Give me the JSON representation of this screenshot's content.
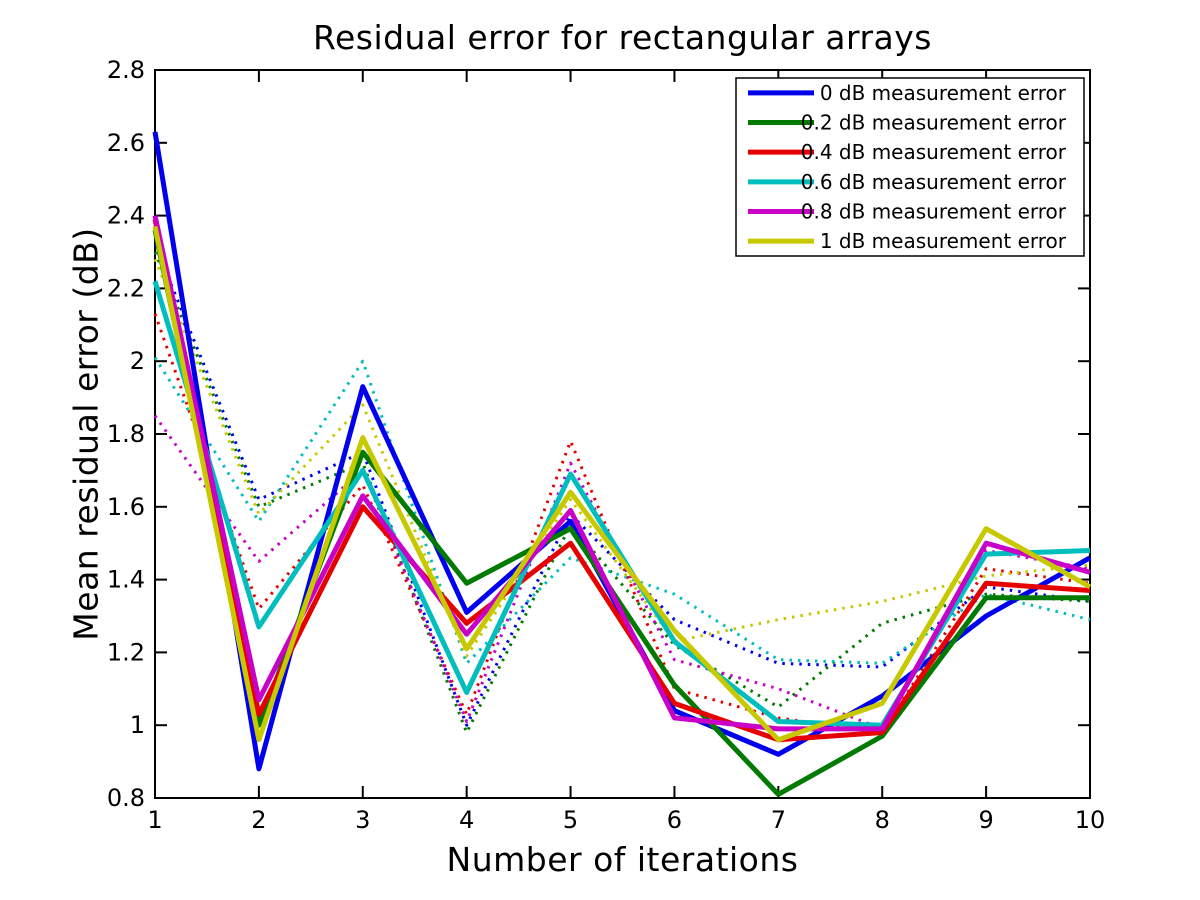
{
  "figure": {
    "background": "#ffffff",
    "title": "Residual error for rectangular arrays",
    "xlabel": "Number of iterations",
    "ylabel": "Mean residual error (dB)"
  },
  "chart_data": {
    "type": "line",
    "title": "Residual error for rectangular arrays",
    "xlabel": "Number of iterations",
    "ylabel": "Mean residual error (dB)",
    "xlim": [
      1,
      10
    ],
    "ylim": [
      0.8,
      2.8
    ],
    "grid": false,
    "legend_position": "top-right",
    "x": [
      1,
      2,
      3,
      4,
      5,
      6,
      7,
      8,
      9,
      10
    ],
    "xtick_labels": [
      "1",
      "2",
      "3",
      "4",
      "5",
      "6",
      "7",
      "8",
      "9",
      "10"
    ],
    "ytick_values": [
      0.8,
      1.0,
      1.2,
      1.4,
      1.6,
      1.8,
      2.0,
      2.2,
      2.4,
      2.6,
      2.8
    ],
    "ytick_labels": [
      "0.8",
      "1",
      "1.2",
      "1.4",
      "1.6",
      "1.8",
      "2",
      "2.2",
      "2.4",
      "2.6",
      "2.8"
    ],
    "series": [
      {
        "id": "blue-dotted",
        "name": "0 dB dotted",
        "color": "#0000EE",
        "style": "dotted",
        "in_legend": false,
        "values": [
          2.32,
          1.62,
          1.75,
          1.0,
          1.58,
          1.29,
          1.17,
          1.16,
          1.38,
          1.34
        ]
      },
      {
        "id": "green-dotted",
        "name": "0.2 dB dotted",
        "color": "#007A00",
        "style": "dotted",
        "in_legend": false,
        "values": [
          2.3,
          1.6,
          1.72,
          0.98,
          1.55,
          1.22,
          1.05,
          1.28,
          1.36,
          1.34
        ]
      },
      {
        "id": "red-dotted",
        "name": "0.4 dB dotted",
        "color": "#E60000",
        "style": "dotted",
        "in_legend": false,
        "values": [
          2.13,
          1.32,
          1.66,
          1.03,
          1.78,
          1.1,
          1.02,
          0.98,
          1.43,
          1.39
        ]
      },
      {
        "id": "cyan-dotted",
        "name": "0.6 dB dotted",
        "color": "#00BEBE",
        "style": "dotted",
        "in_legend": false,
        "values": [
          2.01,
          1.56,
          2.0,
          1.17,
          1.46,
          1.36,
          1.18,
          1.17,
          1.36,
          1.29
        ]
      },
      {
        "id": "magenta-dotted",
        "name": "0.8 dB dotted",
        "color": "#C800C8",
        "style": "dotted",
        "in_legend": false,
        "values": [
          1.85,
          1.45,
          1.7,
          1.01,
          1.72,
          1.18,
          1.1,
          0.99,
          1.48,
          1.43
        ]
      },
      {
        "id": "yellow-dotted",
        "name": "1 dB dotted",
        "color": "#C8C800",
        "style": "dotted",
        "in_legend": false,
        "values": [
          2.28,
          1.58,
          1.88,
          1.19,
          1.62,
          1.23,
          1.29,
          1.34,
          1.41,
          1.44
        ]
      },
      {
        "id": "blue-solid",
        "name": "0 dB measurement error",
        "color": "#0000EE",
        "style": "solid",
        "in_legend": true,
        "values": [
          2.63,
          0.88,
          1.93,
          1.31,
          1.56,
          1.04,
          0.92,
          1.08,
          1.3,
          1.46
        ]
      },
      {
        "id": "green-solid",
        "name": "0.2 dB measurement error",
        "color": "#007A00",
        "style": "solid",
        "in_legend": true,
        "values": [
          2.36,
          1.0,
          1.75,
          1.39,
          1.54,
          1.11,
          0.81,
          0.97,
          1.35,
          1.35
        ]
      },
      {
        "id": "red-solid",
        "name": "0.4 dB measurement error",
        "color": "#E60000",
        "style": "solid",
        "in_legend": true,
        "values": [
          2.39,
          1.03,
          1.6,
          1.28,
          1.5,
          1.06,
          0.96,
          0.98,
          1.39,
          1.37
        ]
      },
      {
        "id": "cyan-solid",
        "name": "0.6 dB measurement error",
        "color": "#00BEBE",
        "style": "solid",
        "in_legend": true,
        "values": [
          2.22,
          1.27,
          1.7,
          1.09,
          1.69,
          1.23,
          1.01,
          1.0,
          1.47,
          1.48
        ]
      },
      {
        "id": "magenta-solid",
        "name": "0.8 dB measurement error",
        "color": "#C800C8",
        "style": "solid",
        "in_legend": true,
        "values": [
          2.4,
          1.07,
          1.63,
          1.25,
          1.59,
          1.02,
          0.99,
          0.99,
          1.5,
          1.42
        ]
      },
      {
        "id": "yellow-solid",
        "name": "1 dB measurement error",
        "color": "#C8C800",
        "style": "solid",
        "in_legend": true,
        "values": [
          2.37,
          0.96,
          1.79,
          1.21,
          1.64,
          1.26,
          0.96,
          1.06,
          1.54,
          1.38
        ]
      }
    ],
    "axis_color": "#000000",
    "legend_border_color": "#000000",
    "legend_background": "#ffffff"
  }
}
